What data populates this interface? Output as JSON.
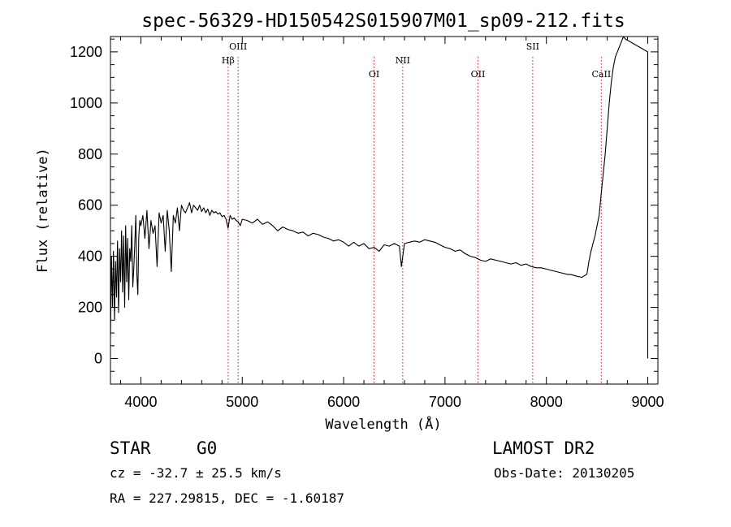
{
  "chart_data": {
    "type": "line",
    "title": "spec-56329-HD150542S015907M01_sp09-212.fits",
    "xlabel": "Wavelength (Å)",
    "ylabel": "Flux (relative)",
    "xlim": [
      3700,
      9100
    ],
    "ylim": [
      -100,
      1260
    ],
    "xticks": [
      4000,
      5000,
      6000,
      7000,
      8000,
      9000
    ],
    "yticks": [
      0,
      200,
      400,
      600,
      800,
      1000,
      1200
    ],
    "spectral_lines": [
      {
        "label": "Hβ",
        "x": 4861
      },
      {
        "label": "OIII",
        "x": 4959
      },
      {
        "label": "OI",
        "x": 6300
      },
      {
        "label": "NII",
        "x": 6583
      },
      {
        "label": "OII",
        "x": 7325
      },
      {
        "label": "SII",
        "x": 7865
      },
      {
        "label": "CaII",
        "x": 8542
      }
    ],
    "series": [
      {
        "x": [
          3700,
          3710,
          3720,
          3730,
          3740,
          3750,
          3760,
          3770,
          3780,
          3790,
          3800,
          3810,
          3820,
          3830,
          3840,
          3850,
          3860,
          3870,
          3880,
          3890,
          3900,
          3910,
          3920,
          3930,
          3940,
          3950,
          3960,
          3970,
          3980,
          3990,
          4000,
          4020,
          4040,
          4060,
          4080,
          4100,
          4120,
          4140,
          4160,
          4180,
          4200,
          4220,
          4240,
          4260,
          4280,
          4300,
          4320,
          4340,
          4360,
          4380,
          4400,
          4420,
          4440,
          4460,
          4480,
          4500,
          4520,
          4540,
          4560,
          4580,
          4600,
          4620,
          4640,
          4660,
          4680,
          4700,
          4720,
          4740,
          4760,
          4780,
          4800,
          4820,
          4840,
          4860,
          4880,
          4900,
          4920,
          4940,
          4960,
          4980,
          5000,
          5050,
          5100,
          5150,
          5200,
          5250,
          5300,
          5350,
          5400,
          5450,
          5500,
          5550,
          5600,
          5650,
          5700,
          5750,
          5800,
          5850,
          5900,
          5950,
          6000,
          6050,
          6100,
          6150,
          6200,
          6250,
          6300,
          6350,
          6400,
          6450,
          6500,
          6550,
          6570,
          6600,
          6650,
          6700,
          6750,
          6800,
          6850,
          6900,
          6950,
          7000,
          7050,
          7100,
          7150,
          7200,
          7250,
          7300,
          7350,
          7400,
          7450,
          7500,
          7550,
          7600,
          7650,
          7700,
          7750,
          7800,
          7850,
          7900,
          7950,
          8000,
          8050,
          8100,
          8150,
          8200,
          8250,
          8300,
          8350,
          8400,
          8420,
          8440,
          8460,
          8480,
          8500,
          8520,
          8540,
          8560,
          8580,
          8600,
          8620,
          8640,
          8660,
          8680,
          8700,
          8720,
          8740,
          8760,
          8780,
          9000,
          9000
        ],
        "y": [
          80,
          400,
          200,
          420,
          150,
          380,
          240,
          460,
          180,
          430,
          300,
          500,
          260,
          480,
          200,
          520,
          300,
          470,
          230,
          430,
          380,
          520,
          280,
          350,
          450,
          560,
          330,
          250,
          480,
          540,
          520,
          560,
          470,
          580,
          430,
          540,
          490,
          520,
          360,
          570,
          530,
          560,
          420,
          580,
          500,
          340,
          560,
          530,
          590,
          500,
          600,
          580,
          570,
          590,
          610,
          570,
          600,
          590,
          580,
          600,
          575,
          590,
          570,
          585,
          560,
          580,
          570,
          575,
          565,
          570,
          555,
          560,
          545,
          510,
          560,
          545,
          550,
          540,
          535,
          520,
          545,
          540,
          530,
          545,
          525,
          535,
          520,
          500,
          515,
          505,
          500,
          490,
          495,
          480,
          490,
          485,
          475,
          470,
          460,
          465,
          455,
          440,
          455,
          440,
          450,
          430,
          435,
          420,
          445,
          440,
          450,
          440,
          360,
          450,
          455,
          460,
          455,
          465,
          460,
          455,
          445,
          435,
          430,
          420,
          425,
          410,
          400,
          395,
          385,
          380,
          390,
          385,
          380,
          375,
          370,
          375,
          365,
          370,
          360,
          355,
          355,
          350,
          345,
          340,
          335,
          330,
          328,
          322,
          318,
          330,
          380,
          420,
          450,
          480,
          520,
          560,
          640,
          720,
          800,
          900,
          1000,
          1080,
          1140,
          1180,
          1200,
          1220,
          1240,
          1260,
          1250,
          1200,
          0
        ]
      }
    ]
  },
  "info": {
    "object_class": "STAR",
    "subclass": "G0",
    "survey": "LAMOST DR2",
    "redshift": "cz = -32.7 ± 25.5 km/s",
    "obs_date": "Obs-Date: 20130205",
    "coords": "RA = 227.29815, DEC =  -1.60187"
  },
  "colors": {
    "spectrum": "#000000",
    "line_marker": "#b22222",
    "frame": "#000000"
  }
}
